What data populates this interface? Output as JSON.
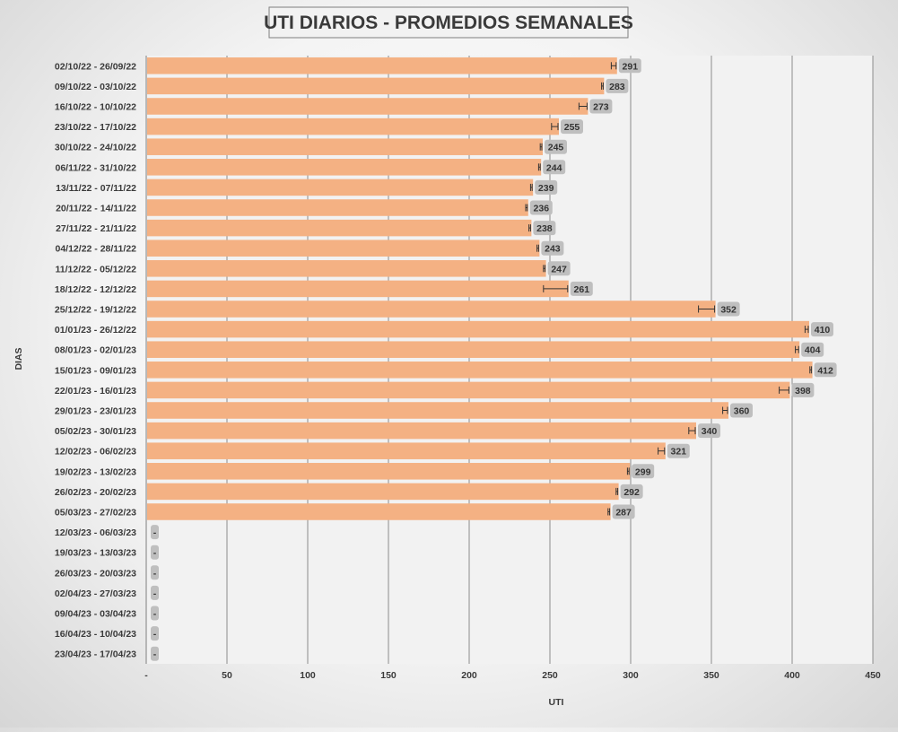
{
  "chart_data": {
    "type": "bar",
    "orientation": "horizontal",
    "title": "UTI DIARIOS - PROMEDIOS SEMANALES",
    "xlabel": "UTI",
    "ylabel": "DIAS",
    "xlim": [
      0,
      450
    ],
    "x_ticks": [
      "-",
      "50",
      "100",
      "150",
      "200",
      "250",
      "300",
      "350",
      "400",
      "450"
    ],
    "x_tick_values": [
      0,
      50,
      100,
      150,
      200,
      250,
      300,
      350,
      400,
      450
    ],
    "grid": true,
    "bar_color": "#F4B183",
    "label_bg_color": "#BFBFBF",
    "categories": [
      "02/10/22 - 26/09/22",
      "09/10/22 - 03/10/22",
      "16/10/22 - 10/10/22",
      "23/10/22 - 17/10/22",
      "30/10/22 - 24/10/22",
      "06/11/22 - 31/10/22",
      "13/11/22 - 07/11/22",
      "20/11/22 - 14/11/22",
      "27/11/22 - 21/11/22",
      "04/12/22 - 28/11/22",
      "11/12/22 - 05/12/22",
      "18/12/22 - 12/12/22",
      "25/12/22 - 19/12/22",
      "01/01/23 - 26/12/22",
      "08/01/23 - 02/01/23",
      "15/01/23 - 09/01/23",
      "22/01/23 - 16/01/23",
      "29/01/23 - 23/01/23",
      "05/02/23 - 30/01/23",
      "12/02/23 - 06/02/23",
      "19/02/23 - 13/02/23",
      "26/02/23 - 20/02/23",
      "05/03/23 - 27/02/23",
      "12/03/23 - 06/03/23",
      "19/03/23 - 13/03/23",
      "26/03/23 - 20/03/23",
      "02/04/23 - 27/03/23",
      "09/04/23 - 03/04/23",
      "16/04/23 - 10/04/23",
      "23/04/23 - 17/04/23"
    ],
    "values": [
      291,
      283,
      273,
      255,
      245,
      244,
      239,
      236,
      238,
      243,
      247,
      261,
      352,
      410,
      404,
      412,
      398,
      360,
      340,
      321,
      299,
      292,
      287,
      0,
      0,
      0,
      0,
      0,
      0,
      0
    ],
    "data_labels": [
      "291",
      "283",
      "273",
      "255",
      "245",
      "244",
      "239",
      "236",
      "238",
      "243",
      "247",
      "261",
      "352",
      "410",
      "404",
      "412",
      "398",
      "360",
      "340",
      "321",
      "299",
      "292",
      "287",
      "-",
      "-",
      "-",
      "-",
      "-",
      "-",
      "-"
    ],
    "error_minus": [
      3,
      1,
      5,
      4,
      1,
      1,
      1,
      1,
      1,
      1,
      1,
      15,
      10,
      2,
      2,
      1,
      6,
      3,
      4,
      4,
      1,
      1,
      1,
      0,
      0,
      0,
      0,
      0,
      0,
      0
    ]
  }
}
